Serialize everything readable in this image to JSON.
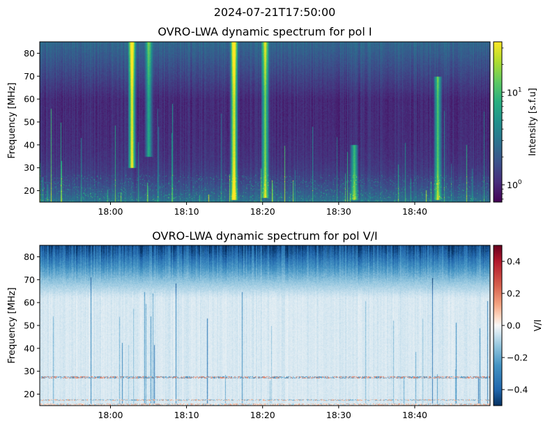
{
  "figure": {
    "suptitle": "2024-07-21T17:50:00"
  },
  "chart_data": [
    {
      "type": "heatmap",
      "title": "OVRO-LWA dynamic spectrum for pol I",
      "xlabel": "",
      "ylabel": "Frequency [MHz]",
      "x_ticks": [
        "18:00",
        "18:10",
        "18:20",
        "18:30",
        "18:40"
      ],
      "x_tick_minutes": [
        10,
        20,
        30,
        40,
        50
      ],
      "x_range_minutes": [
        0.7,
        59.9
      ],
      "y_ticks": [
        20,
        30,
        40,
        50,
        60,
        70,
        80
      ],
      "ylim": [
        15,
        85
      ],
      "colormap": "viridis",
      "colorbar": {
        "label": "Intensity [s.f.u]",
        "scale": "log",
        "range": [
          0.65,
          35
        ],
        "major_ticks": [
          {
            "value": 1,
            "base": "10",
            "exp": "0"
          },
          {
            "value": 10,
            "base": "10",
            "exp": "1"
          }
        ]
      },
      "bursts": [
        {
          "t": 12.8,
          "fmin": 30,
          "fmax": 85,
          "level": 1.0
        },
        {
          "t": 15.0,
          "fmin": 35,
          "fmax": 85,
          "level": 0.55
        },
        {
          "t": 26.2,
          "fmin": 16,
          "fmax": 85,
          "level": 1.0
        },
        {
          "t": 30.3,
          "fmin": 17,
          "fmax": 85,
          "level": 0.8
        },
        {
          "t": 42.0,
          "fmin": 16,
          "fmax": 40,
          "level": 0.6
        },
        {
          "t": 53.0,
          "fmin": 16,
          "fmax": 70,
          "level": 0.7
        }
      ]
    },
    {
      "type": "heatmap",
      "title": "OVRO-LWA dynamic spectrum for pol V/I",
      "xlabel": "",
      "ylabel": "Frequency [MHz]",
      "x_ticks": [
        "18:00",
        "18:10",
        "18:20",
        "18:30",
        "18:40"
      ],
      "x_tick_minutes": [
        10,
        20,
        30,
        40,
        50
      ],
      "x_range_minutes": [
        0.7,
        59.9
      ],
      "y_ticks": [
        20,
        30,
        40,
        50,
        60,
        70,
        80
      ],
      "ylim": [
        15,
        85
      ],
      "colormap": "RdBu_r",
      "colorbar": {
        "label": "V/I",
        "scale": "linear",
        "range": [
          -0.5,
          0.5
        ],
        "ticks": [
          "0.4",
          "0.2",
          "0.0",
          "−0.2",
          "−0.4"
        ],
        "tick_values": [
          0.4,
          0.2,
          0.0,
          -0.2,
          -0.4
        ]
      }
    }
  ]
}
